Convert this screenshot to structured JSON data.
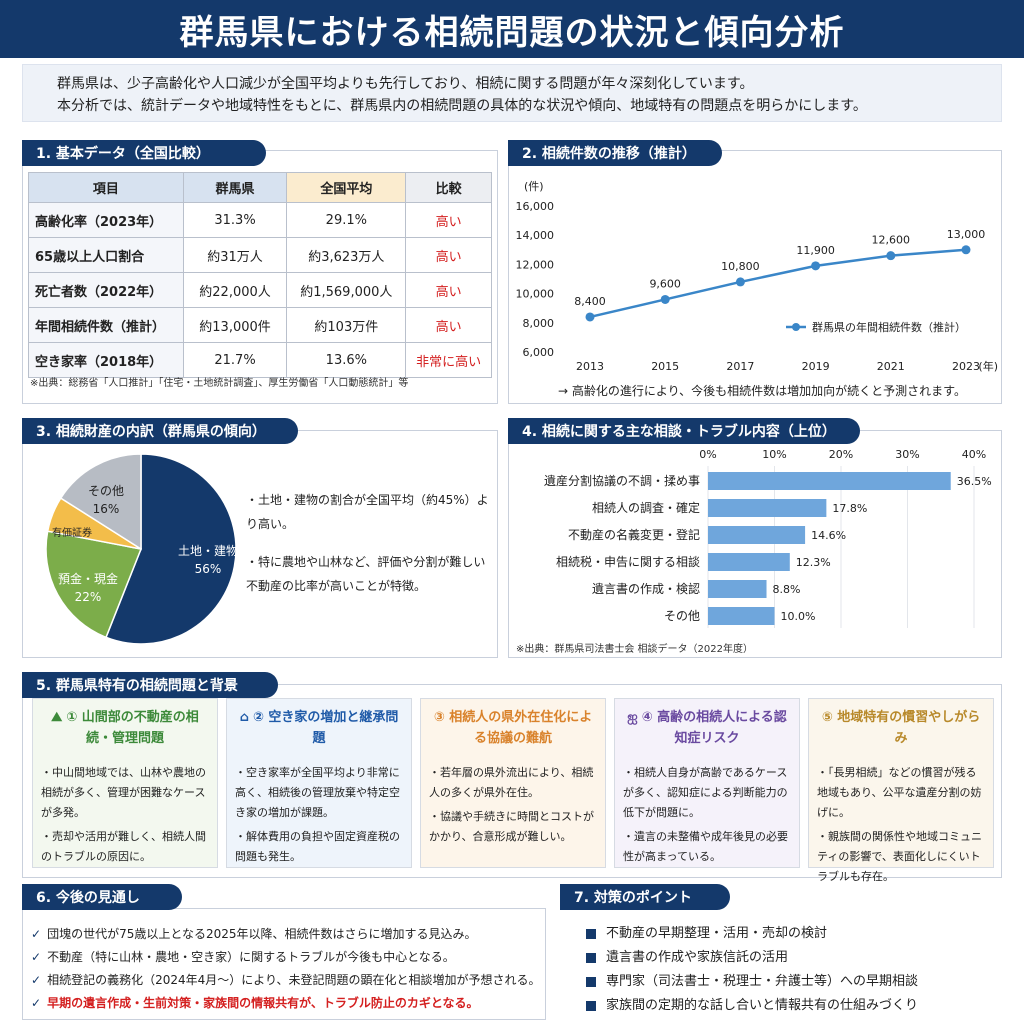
{
  "title": "群馬県における相続問題の状況と傾向分析",
  "intro": [
    "群馬県は、少子高齢化や人口減少が全国平均よりも先行しており、相続に関する問題が年々深刻化しています。",
    "本分析では、統計データや地域特性をもとに、群馬県内の相続問題の具体的な状況や傾向、地域特有の問題点を明らかにします。"
  ],
  "sec1": {
    "title": "1. 基本データ（全国比較）",
    "headers": [
      "項目",
      "群馬県",
      "全国平均",
      "比較"
    ],
    "rows": [
      [
        "高齢化率（2023年）",
        "31.3%",
        "29.1%",
        "高い"
      ],
      [
        "65歳以上人口割合",
        "約31万人",
        "約3,623万人",
        "高い"
      ],
      [
        "死亡者数（2022年）",
        "約22,000人",
        "約1,569,000人",
        "高い"
      ],
      [
        "年間相続件数（推計）",
        "約13,000件",
        "約103万件",
        "高い"
      ],
      [
        "空き家率（2018年）",
        "21.7%",
        "13.6%",
        "非常に高い"
      ]
    ],
    "source": "※出典：総務省「人口推計」「住宅・土地統計調査」、厚生労働省「人口動態統計」等"
  },
  "sec2": {
    "title": "2. 相続件数の推移（推計）",
    "note": "→ 高齢化の進行により、今後も相続件数は増加加向が続くと予測されます。"
  },
  "sec3": {
    "title": "3. 相続財産の内訳（群馬県の傾向）",
    "notes": [
      "・土地・建物の割合が全国平均（約45%）より高い。",
      "・特に農地や山林など、評価や分割が難しい不動産の比率が高いことが特徴。"
    ]
  },
  "sec4": {
    "title": "4. 相続に関する主な相談・トラブル内容（上位）",
    "source": "※出典：群馬県司法書士会 相談データ（2022年度）"
  },
  "chart_data": [
    {
      "type": "line",
      "title": "",
      "ylabel": "(件)",
      "xlabel": "(年)",
      "x": [
        "2013",
        "2015",
        "2017",
        "2019",
        "2021",
        "2023"
      ],
      "ylim": [
        6000,
        16000
      ],
      "yticks": [
        "6,000",
        "8,000",
        "10,000",
        "12,000",
        "14,000",
        "16,000"
      ],
      "series": [
        {
          "name": "群馬県の年間相続件数（推計）",
          "values": [
            8400,
            9600,
            10800,
            11900,
            12600,
            13000
          ],
          "labels": [
            "8,400",
            "9,600",
            "10,800",
            "11,900",
            "12,600",
            "13,000"
          ],
          "color": "#3a86c8"
        }
      ],
      "legend": "right"
    },
    {
      "type": "pie",
      "slices": [
        {
          "label": "土地・建物",
          "value": 56,
          "text": "56%",
          "color": "#14396b"
        },
        {
          "label": "預金・現金",
          "value": 22,
          "text": "22%",
          "color": "#7cad4a"
        },
        {
          "label": "有価証券",
          "value": 6,
          "text": "",
          "color": "#f3bd4a"
        },
        {
          "label": "その他",
          "value": 16,
          "text": "16%",
          "color": "#b7bcc4"
        }
      ]
    },
    {
      "type": "bar",
      "orientation": "horizontal",
      "categories": [
        "遺産分割協議の不調・揉め事",
        "相続人の調査・確定",
        "不動産の名義変更・登記",
        "相続税・申告に関する相談",
        "遺言書の作成・検認",
        "その他"
      ],
      "values": [
        36.5,
        17.8,
        14.6,
        12.3,
        8.8,
        10.0
      ],
      "labels": [
        "36.5%",
        "17.8%",
        "14.6%",
        "12.3%",
        "8.8%",
        "10.0%"
      ],
      "xticks": [
        "0%",
        "10%",
        "20%",
        "30%",
        "40%"
      ],
      "xlim": [
        0,
        40
      ],
      "color": "#6fa6dc"
    }
  ],
  "sec5": {
    "title": "5. 群馬県特有の相続問題と背景",
    "cards": [
      {
        "title": "① 山間部の不動産の相続・管理問題",
        "items": [
          "・中山間地域では、山林や農地の相続が多く、管理が困難なケースが多発。",
          "・売却や活用が難しく、相続人間のトラブルの原因に。"
        ],
        "icon": "mountain-icon",
        "color": "#3d8a3a",
        "bg": "#f3f8ef",
        "icon_glyph": "⛰"
      },
      {
        "title": "② 空き家の増加と継承問題",
        "items": [
          "・空き家率が全国平均より非常に高く、相続後の管理放棄や特定空き家の増加が課題。",
          "・解体費用の負担や固定資産税の問題も発生。"
        ],
        "icon": "house-icon",
        "color": "#1f5aa8",
        "bg": "#eef4fb",
        "icon_glyph": "⌂"
      },
      {
        "title": "③ 相続人の県外在住化による協議の難航",
        "items": [
          "・若年層の県外流出により、相続人の多くが県外在住。",
          "・協議や手続きに時間とコストがかかり、合意形成が難しい。"
        ],
        "icon": "number-three-icon",
        "color": "#d9822b",
        "bg": "#fdf5ea",
        "icon_glyph": ""
      },
      {
        "title": "④ 高齢の相続人による認知症リスク",
        "items": [
          "・相続人自身が高齢であるケースが多く、認知症による判断能力の低下が問題に。",
          "・遺言の未整備や成年後見の必要性が高まっている。"
        ],
        "icon": "brain-icon",
        "color": "#6a4aa0",
        "bg": "#f5f2fa",
        "icon_glyph": "ஐ"
      },
      {
        "title": "⑤ 地域特有の慣習やしがらみ",
        "items": [
          "・「長男相続」などの慣習が残る地域もあり、公平な遺産分割の妨げに。",
          "・親族間の関係性や地域コミュニティの影響で、表面化しにくいトラブルも存在。"
        ],
        "icon": "number-five-icon",
        "color": "#b8892a",
        "bg": "#fbf6ec",
        "icon_glyph": ""
      }
    ]
  },
  "sec6": {
    "title": "6. 今後の見通し",
    "items": [
      "団塊の世代が75歳以上となる2025年以降、相続件数はさらに増加する見込み。",
      "不動産（特に山林・農地・空き家）に関するトラブルが今後も中心となる。",
      "相続登記の義務化（2024年4月～）により、未登記問題の顕在化と相談増加が予想される。",
      "早期の遺言作成・生前対策・家族間の情報共有が、トラブル防止のカギとなる。"
    ]
  },
  "sec7": {
    "title": "7. 対策のポイント",
    "items": [
      "不動産の早期整理・活用・売却の検討",
      "遺言書の作成や家族信託の活用",
      "専門家（司法書士・税理士・弁護士等）への早期相談",
      "家族間の定期的な話し合いと情報共有の仕組みづくり"
    ]
  }
}
